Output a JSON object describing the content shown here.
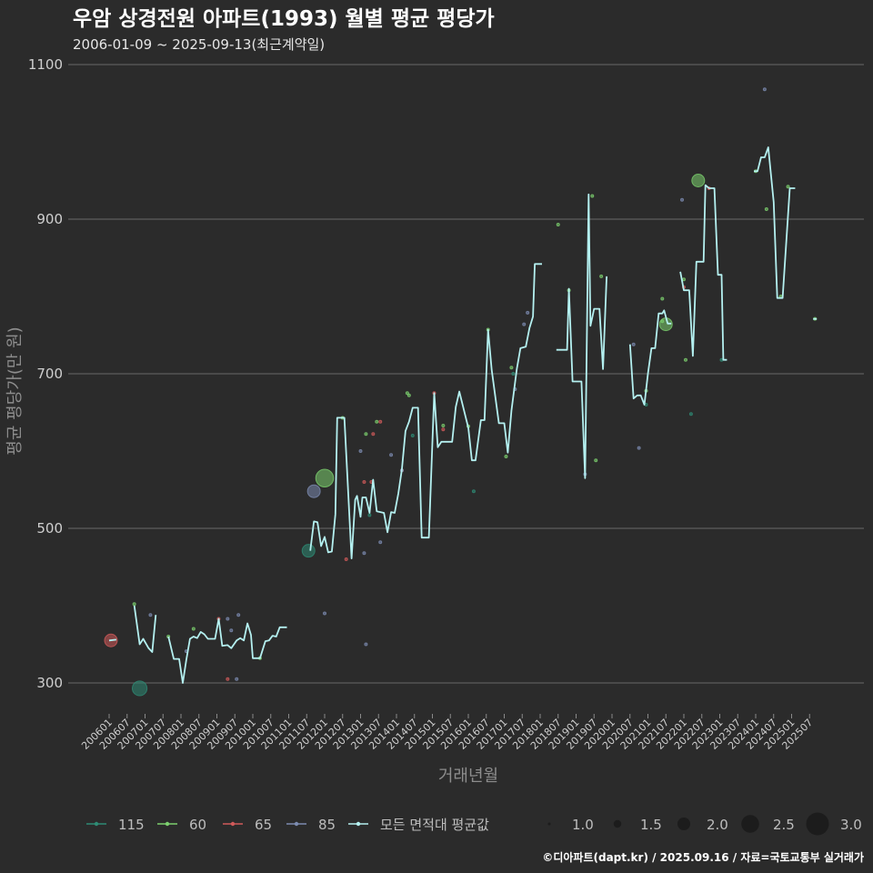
{
  "title": "우암 상경전원 아파트(1993) 월별 평균 평당가",
  "subtitle": "2006-01-09 ~ 2025-09-13(최근계약일)",
  "caption": "©디아파트(dapt.kr) / 2025.09.16 / 자료=국토교통부 실거래가",
  "colors": {
    "background": "#2b2b2b",
    "grid": "#5c5c5c",
    "avg_line": "#b4f0f0",
    "s115": "#2e8b74",
    "s60": "#7ccf6e",
    "s65": "#d05a5a",
    "s85": "#7c8bb0"
  },
  "chart_data": {
    "type": "line",
    "title": "우암 상경전원 아파트(1993) 월별 평균 평당가",
    "xlabel": "거래년월",
    "ylabel": "평균 평당가(만 원)",
    "ylim": [
      240,
      1110
    ],
    "xlim": [
      2005.75,
      2026.25
    ],
    "yticks": [
      300,
      500,
      700,
      900,
      1100
    ],
    "ytick_labels": [
      "300",
      "500",
      "700",
      "900",
      "1100"
    ],
    "xtick_labels": [
      "200601",
      "200607",
      "200701",
      "200707",
      "200801",
      "200807",
      "200901",
      "200907",
      "201001",
      "201007",
      "201101",
      "201107",
      "201201",
      "201207",
      "201301",
      "201307",
      "201401",
      "201407",
      "201501",
      "201507",
      "201601",
      "201607",
      "201701",
      "201707",
      "201801",
      "201807",
      "201901",
      "201907",
      "202001",
      "202007",
      "202101",
      "202107",
      "202201",
      "202207",
      "202301",
      "202307",
      "202401",
      "202407",
      "202501",
      "202507"
    ],
    "grid": true,
    "legend": {
      "position": "bottom",
      "series_labels": [
        "115",
        "60",
        "65",
        "85",
        "모든 면적대 평균값"
      ],
      "size_labels": [
        "1.0",
        "1.5",
        "2.0",
        "2.5",
        "3.0"
      ]
    },
    "series": [
      {
        "name": "모든 면적대 평균값",
        "type": "line",
        "segments": [
          [
            [
              2006.0,
              355
            ],
            [
              2006.2,
              356
            ]
          ],
          [
            [
              2006.7,
              400
            ],
            [
              2006.85,
              350
            ],
            [
              2006.95,
              357
            ],
            [
              2007.1,
              345
            ],
            [
              2007.2,
              340
            ],
            [
              2007.3,
              388
            ]
          ],
          [
            [
              2007.65,
              360
            ],
            [
              2007.8,
              331
            ],
            [
              2007.95,
              331
            ],
            [
              2008.05,
              300
            ],
            [
              2008.15,
              330
            ],
            [
              2008.25,
              357
            ],
            [
              2008.35,
              360
            ],
            [
              2008.45,
              358
            ],
            [
              2008.55,
              366
            ],
            [
              2008.65,
              363
            ],
            [
              2008.75,
              357
            ],
            [
              2008.95,
              357
            ],
            [
              2009.05,
              383
            ],
            [
              2009.15,
              348
            ],
            [
              2009.3,
              349
            ],
            [
              2009.4,
              345
            ],
            [
              2009.55,
              355
            ],
            [
              2009.65,
              358
            ],
            [
              2009.75,
              355
            ],
            [
              2009.85,
              377
            ],
            [
              2009.95,
              362
            ],
            [
              2010.0,
              332
            ],
            [
              2010.1,
              332
            ],
            [
              2010.2,
              332
            ],
            [
              2010.35,
              354
            ],
            [
              2010.45,
              355
            ],
            [
              2010.55,
              361
            ],
            [
              2010.65,
              360
            ],
            [
              2010.75,
              372
            ],
            [
              2010.95,
              372
            ]
          ],
          [
            [
              2011.6,
              471
            ],
            [
              2011.7,
              509
            ],
            [
              2011.8,
              508
            ],
            [
              2011.9,
              477
            ],
            [
              2012.0,
              489
            ],
            [
              2012.1,
              469
            ],
            [
              2012.2,
              470
            ],
            [
              2012.3,
              518
            ],
            [
              2012.35,
              643
            ],
            [
              2012.55,
              643
            ],
            [
              2012.75,
              461
            ],
            [
              2012.85,
              537
            ],
            [
              2012.9,
              542
            ],
            [
              2013.0,
              515
            ],
            [
              2013.05,
              540
            ],
            [
              2013.15,
              540
            ],
            [
              2013.25,
              520
            ],
            [
              2013.35,
              563
            ],
            [
              2013.45,
              522
            ],
            [
              2013.55,
              521
            ],
            [
              2013.65,
              520
            ],
            [
              2013.75,
              495
            ],
            [
              2013.85,
              521
            ],
            [
              2013.95,
              520
            ],
            [
              2014.05,
              545
            ],
            [
              2014.15,
              576
            ],
            [
              2014.25,
              626
            ],
            [
              2014.35,
              638
            ],
            [
              2014.45,
              656
            ],
            [
              2014.6,
              656
            ],
            [
              2014.7,
              488
            ],
            [
              2014.9,
              488
            ],
            [
              2015.05,
              675
            ],
            [
              2015.15,
              605
            ],
            [
              2015.25,
              612
            ],
            [
              2015.35,
              612
            ],
            [
              2015.55,
              612
            ],
            [
              2015.65,
              657
            ],
            [
              2015.75,
              677
            ],
            [
              2015.85,
              658
            ],
            [
              2016.0,
              630
            ],
            [
              2016.1,
              588
            ],
            [
              2016.2,
              588
            ],
            [
              2016.35,
              640
            ],
            [
              2016.45,
              640
            ],
            [
              2016.55,
              757
            ],
            [
              2016.65,
              705
            ],
            [
              2016.85,
              636
            ],
            [
              2017.0,
              636
            ],
            [
              2017.1,
              598
            ],
            [
              2017.2,
              652
            ],
            [
              2017.35,
              706
            ],
            [
              2017.45,
              733
            ],
            [
              2017.6,
              735
            ],
            [
              2017.7,
              759
            ],
            [
              2017.8,
              774
            ],
            [
              2017.85,
              842
            ],
            [
              2018.05,
              842
            ]
          ],
          [
            [
              2018.45,
              731
            ],
            [
              2018.75,
              731
            ],
            [
              2018.8,
              810
            ],
            [
              2018.9,
              690
            ],
            [
              2019.15,
              690
            ],
            [
              2019.25,
              565
            ],
            [
              2019.35,
              932
            ],
            [
              2019.4,
              762
            ],
            [
              2019.5,
              784
            ],
            [
              2019.65,
              784
            ],
            [
              2019.75,
              706
            ],
            [
              2019.85,
              826
            ]
          ],
          [
            [
              2020.5,
              738
            ],
            [
              2020.6,
              668
            ],
            [
              2020.7,
              672
            ],
            [
              2020.8,
              672
            ],
            [
              2020.9,
              660
            ],
            [
              2021.0,
              700
            ],
            [
              2021.1,
              733
            ],
            [
              2021.2,
              733
            ],
            [
              2021.3,
              778
            ],
            [
              2021.4,
              778
            ],
            [
              2021.45,
              782
            ],
            [
              2021.55,
              765
            ],
            [
              2021.65,
              765
            ]
          ],
          [
            [
              2021.9,
              832
            ],
            [
              2022.0,
              808
            ],
            [
              2022.15,
              808
            ],
            [
              2022.25,
              723
            ],
            [
              2022.35,
              845
            ],
            [
              2022.55,
              845
            ],
            [
              2022.6,
              944
            ],
            [
              2022.7,
              940
            ],
            [
              2022.85,
              940
            ],
            [
              2022.95,
              828
            ],
            [
              2023.05,
              828
            ],
            [
              2023.1,
              718
            ],
            [
              2023.2,
              718
            ]
          ],
          [
            [
              2023.95,
              962
            ],
            [
              2024.05,
              962
            ],
            [
              2024.15,
              980
            ],
            [
              2024.25,
              980
            ],
            [
              2024.35,
              993
            ],
            [
              2024.5,
              922
            ],
            [
              2024.6,
              798
            ],
            [
              2024.75,
              798
            ],
            [
              2024.95,
              940
            ],
            [
              2025.1,
              940
            ]
          ],
          [
            [
              2025.6,
              771
            ],
            [
              2025.7,
              771
            ]
          ]
        ]
      },
      {
        "name": "115",
        "type": "scatter",
        "points": [
          [
            2006.85,
            293,
            2.2
          ],
          [
            2011.55,
            471,
            2.0
          ],
          [
            2013.25,
            517,
            1.0
          ],
          [
            2014.45,
            620,
            1.0
          ],
          [
            2016.15,
            548,
            1.0
          ],
          [
            2017.25,
            700,
            1.0
          ],
          [
            2020.95,
            660,
            1.0
          ],
          [
            2022.2,
            648,
            1.0
          ],
          [
            2023.05,
            718,
            1.0
          ]
        ]
      },
      {
        "name": "60",
        "type": "scatter",
        "points": [
          [
            2006.7,
            402,
            1.0
          ],
          [
            2007.65,
            360,
            1.0
          ],
          [
            2008.35,
            370,
            1.0
          ],
          [
            2010.2,
            332,
            1.0
          ],
          [
            2012.0,
            565,
            2.5
          ],
          [
            2012.5,
            643,
            1.0
          ],
          [
            2013.15,
            622,
            1.0
          ],
          [
            2013.45,
            638,
            1.0
          ],
          [
            2014.3,
            675,
            1.0
          ],
          [
            2014.35,
            672,
            1.0
          ],
          [
            2015.3,
            633,
            1.0
          ],
          [
            2016.0,
            632,
            1.0
          ],
          [
            2016.55,
            757,
            1.0
          ],
          [
            2017.05,
            593,
            1.0
          ],
          [
            2017.2,
            708,
            1.0
          ],
          [
            2018.5,
            893,
            1.0
          ],
          [
            2018.8,
            808,
            1.0
          ],
          [
            2019.45,
            930,
            1.0
          ],
          [
            2019.55,
            588,
            1.0
          ],
          [
            2019.7,
            826,
            1.0
          ],
          [
            2020.95,
            678,
            1.0
          ],
          [
            2021.4,
            797,
            1.0
          ],
          [
            2021.4,
            768,
            1.0
          ],
          [
            2021.5,
            764,
            2.0
          ],
          [
            2022.0,
            822,
            1.0
          ],
          [
            2022.05,
            718,
            1.0
          ],
          [
            2022.4,
            950,
            2.0
          ],
          [
            2024.0,
            962,
            1.0
          ],
          [
            2024.3,
            913,
            1.0
          ],
          [
            2024.7,
            800,
            1.0
          ],
          [
            2024.9,
            942,
            1.0
          ],
          [
            2025.65,
            771,
            1.0
          ]
        ]
      },
      {
        "name": "65",
        "type": "scatter",
        "points": [
          [
            2006.05,
            355,
            2.0
          ],
          [
            2009.05,
            383,
            1.0
          ],
          [
            2009.3,
            305,
            1.0
          ],
          [
            2012.6,
            460,
            1.0
          ],
          [
            2013.1,
            560,
            1.0
          ],
          [
            2013.3,
            560,
            1.0
          ],
          [
            2013.35,
            622,
            1.0
          ],
          [
            2013.55,
            638,
            1.0
          ],
          [
            2014.15,
            575,
            1.0
          ],
          [
            2015.05,
            675,
            1.0
          ],
          [
            2015.3,
            628,
            1.0
          ],
          [
            2022.0,
            812,
            1.0
          ],
          [
            2022.7,
            940,
            1.0
          ]
        ]
      },
      {
        "name": "85",
        "type": "scatter",
        "points": [
          [
            2007.15,
            388,
            1.0
          ],
          [
            2008.15,
            341,
            1.0
          ],
          [
            2009.3,
            383,
            1.0
          ],
          [
            2009.4,
            368,
            1.0
          ],
          [
            2009.55,
            305,
            1.0
          ],
          [
            2009.6,
            388,
            1.0
          ],
          [
            2011.7,
            548,
            2.0
          ],
          [
            2012.0,
            390,
            1.0
          ],
          [
            2013.0,
            600,
            1.0
          ],
          [
            2013.1,
            468,
            1.0
          ],
          [
            2013.15,
            350,
            1.0
          ],
          [
            2013.55,
            482,
            1.0
          ],
          [
            2013.85,
            595,
            1.0
          ],
          [
            2014.15,
            575,
            1.0
          ],
          [
            2017.3,
            680,
            1.0
          ],
          [
            2017.55,
            764,
            1.0
          ],
          [
            2017.65,
            779,
            1.0
          ],
          [
            2019.25,
            570,
            1.0
          ],
          [
            2020.6,
            738,
            1.0
          ],
          [
            2020.75,
            604,
            1.0
          ],
          [
            2021.95,
            925,
            1.0
          ],
          [
            2024.25,
            1068,
            1.0
          ]
        ]
      }
    ]
  }
}
